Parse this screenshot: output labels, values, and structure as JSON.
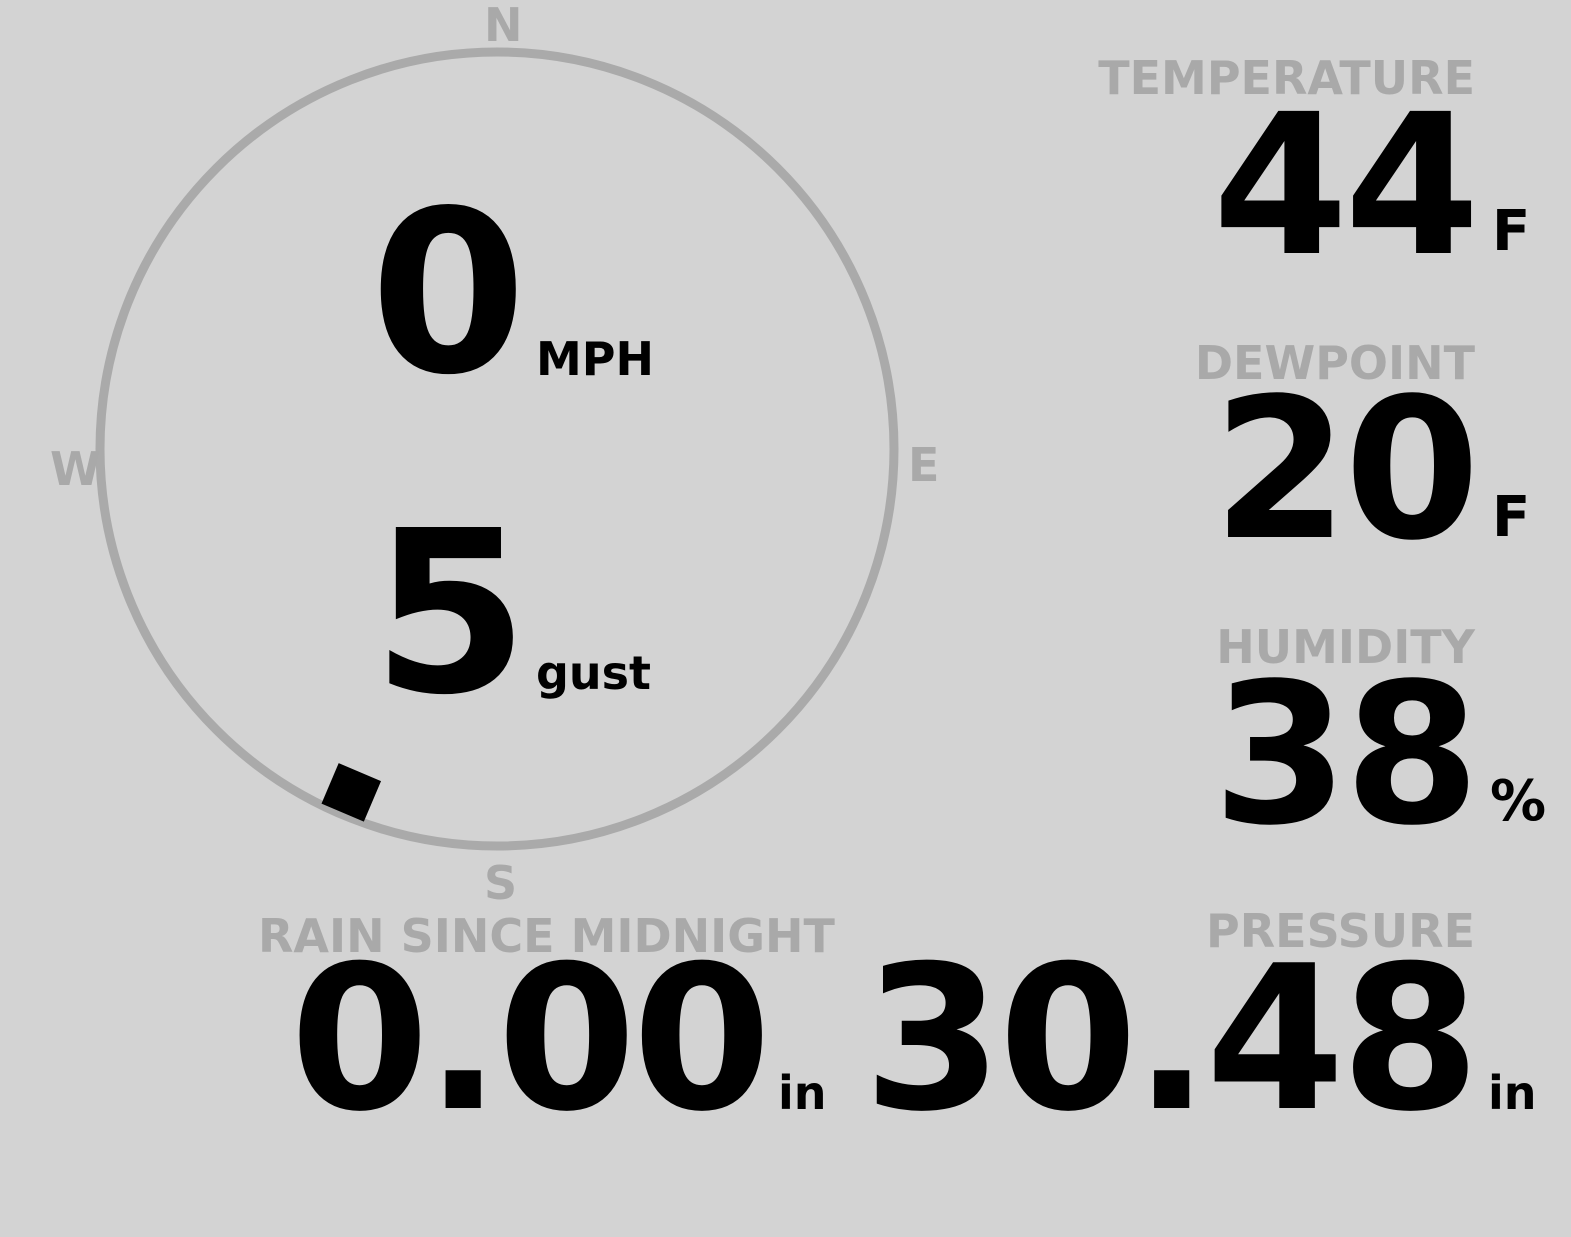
{
  "wind": {
    "compass_labels": {
      "n": "N",
      "e": "E",
      "s": "S",
      "w": "W"
    },
    "speed": "0",
    "speed_unit": "MPH",
    "gust": "5",
    "gust_unit": "gust",
    "direction_deg": 203
  },
  "temperature": {
    "label": "TEMPERATURE",
    "value": "44",
    "unit": "F"
  },
  "dewpoint": {
    "label": "DEWPOINT",
    "value": "20",
    "unit": "F"
  },
  "humidity": {
    "label": "HUMIDITY",
    "value": "38",
    "unit": "%"
  },
  "rain": {
    "label": "RAIN SINCE MIDNIGHT",
    "value": "0.00",
    "unit": "in"
  },
  "pressure": {
    "label": "PRESSURE",
    "value": "30.48",
    "unit": "in"
  },
  "colors": {
    "background": "#d3d3d3",
    "label": "#a9a9a9",
    "value": "#000000",
    "ring": "#aaaaaa"
  }
}
